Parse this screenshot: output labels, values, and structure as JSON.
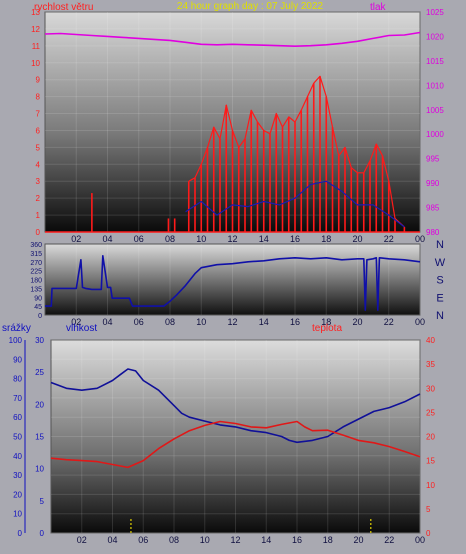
{
  "header": {
    "title": "24 hour graph day : 07 July 2022"
  },
  "colors": {
    "wind": "#ff1a1a",
    "wind_avg": "#1a1ab4",
    "pressure": "#e000e0",
    "direction": "#1010a8",
    "humidity": "#101098",
    "temperature": "#e01818",
    "rain": "#1010c0",
    "rain_marker": "#e0d000",
    "title": "#e0e000",
    "label_left": "#ff2020",
    "label_pressure": "#e000e0",
    "label_dir": "#101070",
    "label_rain": "#1010c0",
    "label_temp": "#ff2020"
  },
  "x_tick_labels": [
    "02",
    "04",
    "06",
    "08",
    "10",
    "12",
    "14",
    "16",
    "18",
    "20",
    "22",
    "00"
  ],
  "chart_data": [
    {
      "type": "line",
      "title": "24 hour graph day : 07 July 2022",
      "x_unit": "hour",
      "x_range": [
        0,
        24
      ],
      "y_left": {
        "label": "rychlost větru",
        "ticks": [
          "0",
          "1",
          "2",
          "3",
          "4",
          "5",
          "6",
          "7",
          "8",
          "9",
          "10",
          "11",
          "12",
          "13"
        ],
        "range": [
          0,
          13
        ]
      },
      "y_right": {
        "label": "tlak",
        "ticks": [
          "980",
          "985",
          "990",
          "995",
          "1000",
          "1005",
          "1010",
          "1015",
          "1020",
          "1025"
        ],
        "range": [
          980,
          1025
        ]
      },
      "series": [
        {
          "name": "rychlost větru",
          "axis": "left",
          "style": "gust-spikes",
          "x": [
            3.0,
            7.9,
            8.3,
            9.2,
            9.6,
            10.0,
            10.4,
            10.8,
            11.2,
            11.6,
            12.0,
            12.4,
            12.8,
            13.2,
            13.6,
            14.0,
            14.4,
            14.8,
            15.2,
            15.6,
            16.0,
            16.4,
            16.8,
            17.2,
            17.6,
            18.0,
            18.4,
            18.8,
            19.2,
            19.6,
            20.0,
            20.4,
            20.8,
            21.2,
            21.6,
            22.0,
            22.4,
            23.0
          ],
          "y": [
            2.3,
            0.8,
            0.8,
            3.0,
            3.2,
            4.0,
            5.0,
            6.2,
            5.5,
            7.5,
            6.0,
            5.0,
            5.5,
            7.2,
            6.5,
            6.0,
            5.8,
            7.0,
            6.2,
            6.8,
            6.5,
            7.2,
            8.0,
            8.8,
            9.2,
            8.0,
            6.2,
            4.5,
            5.0,
            3.8,
            3.5,
            3.5,
            4.2,
            5.2,
            4.5,
            3.0,
            0.8,
            0.3
          ]
        },
        {
          "name": "wind average",
          "axis": "left",
          "x": [
            9.0,
            10.0,
            11.0,
            12.0,
            13.0,
            14.0,
            15.0,
            16.0,
            17.0,
            18.0,
            19.0,
            20.0,
            21.0,
            22.0,
            23.0
          ],
          "y": [
            1.2,
            1.8,
            1.0,
            1.6,
            1.5,
            1.8,
            1.6,
            2.0,
            2.8,
            3.0,
            2.4,
            1.6,
            1.6,
            1.0,
            0.3
          ]
        },
        {
          "name": "tlak",
          "axis": "right",
          "x": [
            0.0,
            1.0,
            2.0,
            3.0,
            4.0,
            5.0,
            6.0,
            7.0,
            8.0,
            9.0,
            10.0,
            11.0,
            12.0,
            13.0,
            14.0,
            15.0,
            16.0,
            17.0,
            18.0,
            19.0,
            20.0,
            21.0,
            22.0,
            23.0,
            24.0
          ],
          "y": [
            1020.5,
            1020.6,
            1020.4,
            1020.2,
            1020.0,
            1019.8,
            1019.6,
            1019.4,
            1019.2,
            1018.8,
            1018.4,
            1018.3,
            1018.4,
            1018.3,
            1018.2,
            1018.1,
            1018.0,
            1018.1,
            1018.3,
            1018.6,
            1019.0,
            1019.6,
            1020.2,
            1020.3,
            1020.8
          ]
        }
      ]
    },
    {
      "type": "line",
      "x_unit": "hour",
      "x_range": [
        0,
        24
      ],
      "y_left": {
        "ticks": [
          "0",
          "45",
          "90",
          "135",
          "180",
          "225",
          "270",
          "315",
          "360"
        ],
        "range": [
          0,
          360
        ]
      },
      "y_right_labels": [
        "N",
        "W",
        "S",
        "E",
        "N"
      ],
      "series": [
        {
          "name": "wind direction",
          "axis": "left",
          "x": [
            0.0,
            0.4,
            0.45,
            2.0,
            2.3,
            2.4,
            2.6,
            3.0,
            3.6,
            3.7,
            4.0,
            4.2,
            4.3,
            5.4,
            5.6,
            7.6,
            8.0,
            8.4,
            9.0,
            9.6,
            10.0,
            11.0,
            12.0,
            13.0,
            14.0,
            15.0,
            16.0,
            17.0,
            18.0,
            19.0,
            20.0,
            20.4,
            20.5,
            20.6,
            21.0,
            21.2,
            21.3,
            21.4,
            22.0,
            23.0,
            24.0
          ],
          "y": [
            45,
            45,
            135,
            135,
            280,
            140,
            135,
            130,
            130,
            300,
            140,
            140,
            85,
            85,
            45,
            45,
            70,
            100,
            150,
            210,
            240,
            255,
            260,
            270,
            275,
            285,
            290,
            285,
            290,
            280,
            285,
            285,
            25,
            280,
            285,
            290,
            25,
            290,
            285,
            280,
            270
          ]
        }
      ]
    },
    {
      "type": "line",
      "x_unit": "hour",
      "x_range": [
        0,
        24
      ],
      "y_left": {
        "label": "srážky",
        "ticks": [
          "0",
          "10",
          "20",
          "30",
          "40",
          "50",
          "60",
          "70",
          "80",
          "90",
          "100"
        ],
        "range": [
          0,
          100
        ]
      },
      "y_left_inner": {
        "label": "vlhkost",
        "ticks": [
          "0",
          "5",
          "10",
          "15",
          "20",
          "25",
          "30"
        ],
        "range": [
          0,
          30
        ]
      },
      "y_right": {
        "label": "teplota",
        "ticks": [
          "0",
          "5",
          "10",
          "15",
          "20",
          "25",
          "30",
          "35",
          "40"
        ],
        "range": [
          0,
          40
        ]
      },
      "series": [
        {
          "name": "vlhkost",
          "axis": "left",
          "x": [
            0.0,
            1.0,
            2.0,
            3.0,
            4.0,
            4.5,
            5.0,
            5.5,
            6.0,
            7.0,
            8.0,
            8.5,
            9.0,
            10.0,
            11.0,
            12.0,
            13.0,
            14.0,
            15.0,
            15.5,
            16.0,
            17.0,
            18.0,
            19.0,
            20.0,
            21.0,
            22.0,
            23.0,
            24.0
          ],
          "y": [
            78,
            75,
            74,
            75,
            79,
            82,
            85,
            84,
            79,
            74,
            66,
            62,
            60,
            58,
            56,
            55,
            53,
            52,
            50,
            48,
            47,
            48,
            50,
            55,
            59,
            63,
            65,
            68,
            72
          ]
        },
        {
          "name": "teplota",
          "axis": "right",
          "x": [
            0.0,
            1.0,
            2.0,
            3.0,
            4.0,
            5.0,
            6.0,
            7.0,
            8.0,
            9.0,
            10.0,
            11.0,
            12.0,
            13.0,
            14.0,
            15.0,
            16.0,
            16.5,
            17.0,
            18.0,
            19.0,
            20.0,
            21.0,
            22.0,
            23.0,
            24.0
          ],
          "y": [
            15.5,
            15.2,
            15.0,
            14.8,
            14.2,
            13.6,
            15.0,
            17.5,
            19.5,
            21.2,
            22.3,
            23.1,
            22.7,
            22.0,
            21.8,
            22.5,
            23.1,
            22.0,
            21.2,
            21.3,
            20.3,
            19.2,
            18.7,
            17.9,
            16.9,
            15.8
          ]
        },
        {
          "name": "srážky",
          "axis": "left",
          "style": "markers",
          "x": [
            5.2,
            20.8
          ],
          "y": [
            0,
            0
          ]
        }
      ]
    }
  ]
}
